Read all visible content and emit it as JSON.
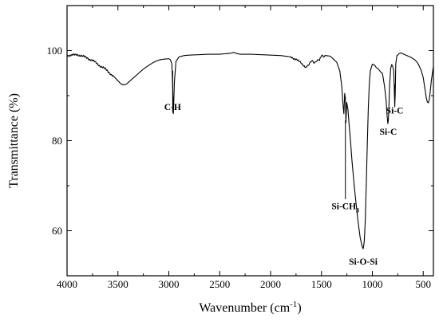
{
  "chart_data": {
    "type": "line",
    "title": "",
    "xlabel": "Wavenumber (cm",
    "xlabel_sup": "-1",
    "xlabel_end": ")",
    "ylabel": "Transmittance (%)",
    "xlim": [
      4000,
      400
    ],
    "ylim": [
      50,
      110
    ],
    "x_reversed": true,
    "x_ticks": [
      4000,
      3500,
      3000,
      2500,
      2000,
      1500,
      1000,
      500
    ],
    "y_ticks": [
      60,
      80,
      100
    ],
    "x_tick_labels": [
      "4000",
      "3500",
      "3000",
      "2500",
      "2000",
      "1500",
      "1000",
      "500"
    ],
    "y_tick_labels": [
      "60",
      "80",
      "100"
    ],
    "grid": false,
    "series": [
      {
        "x": [
          4000,
          3950,
          3900,
          3850,
          3800,
          3750,
          3700,
          3650,
          3600,
          3550,
          3500,
          3470,
          3450,
          3420,
          3400,
          3350,
          3300,
          3250,
          3200,
          3150,
          3100,
          3050,
          3000,
          2985,
          2970,
          2962,
          2955,
          2945,
          2930,
          2900,
          2850,
          2800,
          2700,
          2600,
          2500,
          2400,
          2360,
          2340,
          2300,
          2200,
          2100,
          2000,
          1900,
          1800,
          1750,
          1700,
          1650,
          1630,
          1600,
          1560,
          1520,
          1500,
          1460,
          1420,
          1400,
          1350,
          1320,
          1300,
          1290,
          1280,
          1272,
          1265,
          1260,
          1252,
          1240,
          1230,
          1215,
          1200,
          1180,
          1160,
          1140,
          1120,
          1100,
          1090,
          1080,
          1070,
          1060,
          1050,
          1040,
          1030,
          1020,
          1000,
          980,
          960,
          940,
          920,
          900,
          880,
          865,
          855,
          848,
          843,
          838,
          830,
          820,
          810,
          800,
          790,
          785,
          780,
          775,
          770,
          760,
          740,
          720,
          700,
          680,
          660,
          640,
          620,
          600,
          580,
          560,
          540,
          520,
          500,
          490,
          480,
          470,
          460,
          450,
          440,
          430,
          420,
          410,
          400
        ],
        "y": [
          99.0,
          98.9,
          99.2,
          98.7,
          98.4,
          97.8,
          97.0,
          96.3,
          95.4,
          94.5,
          93.3,
          92.6,
          92.4,
          92.5,
          92.9,
          93.9,
          94.9,
          95.9,
          96.7,
          97.4,
          97.9,
          98.1,
          98.2,
          98.0,
          97.0,
          92.0,
          86.0,
          93.0,
          97.6,
          98.6,
          98.9,
          99.0,
          99.1,
          99.2,
          99.2,
          99.4,
          99.6,
          99.4,
          99.2,
          99.2,
          99.1,
          99.0,
          98.9,
          98.6,
          98.1,
          97.2,
          96.3,
          96.7,
          97.6,
          97.4,
          98.1,
          98.7,
          98.9,
          98.8,
          98.5,
          97.4,
          95.5,
          92.0,
          88.5,
          86.0,
          90.5,
          89.5,
          84.0,
          88.5,
          87.0,
          84.0,
          80.0,
          75.5,
          70.5,
          66.0,
          62.0,
          58.5,
          56.5,
          56.0,
          57.5,
          62.0,
          70.0,
          79.0,
          87.0,
          92.5,
          95.5,
          97.0,
          96.8,
          96.2,
          95.9,
          95.3,
          94.9,
          92.0,
          89.0,
          85.5,
          83.8,
          84.5,
          87.0,
          92.5,
          96.0,
          96.9,
          96.5,
          95.5,
          92.0,
          87.5,
          90.5,
          97.0,
          98.8,
          99.3,
          99.5,
          99.3,
          99.1,
          98.9,
          98.7,
          98.5,
          98.2,
          97.9,
          97.4,
          96.6,
          95.6,
          94.0,
          92.5,
          91.0,
          89.5,
          88.6,
          88.4,
          89.2,
          91.2,
          93.4,
          95.0,
          96.5
        ]
      }
    ],
    "annotations": [
      {
        "text": "C-H",
        "x": 2962,
        "y_label": 87.5,
        "line_from": 95.5,
        "line_to": 86.2,
        "label_side": "center"
      },
      {
        "text": "Si-CH",
        "sub": "3",
        "x": 1265,
        "y_label": 65.5,
        "line_from": 84.5,
        "line_to": 67.0,
        "label_side": "center"
      },
      {
        "text": "Si-O-Si",
        "x": 1090,
        "y_label": 53.2,
        "line_from": null,
        "line_to": null,
        "label_side": "center"
      },
      {
        "text": "Si-C",
        "x": 843,
        "y_label": 82.0,
        "line_from": null,
        "line_to": null,
        "label_side": "center"
      },
      {
        "text": "Si-C",
        "x": 780,
        "y_label": 86.7,
        "line_from": 92.5,
        "line_to": 88.5,
        "label_side": "center"
      }
    ]
  }
}
